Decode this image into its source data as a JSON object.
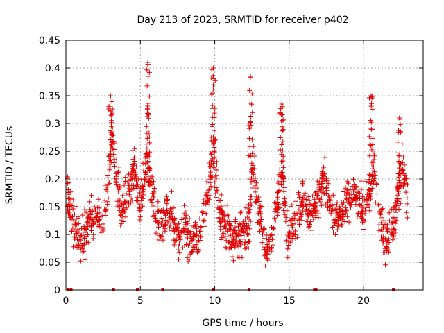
{
  "chart_data": {
    "type": "scatter",
    "title": "Day 213 of 2023, SRMTID for receiver p402",
    "xlabel": "GPS time / hours",
    "ylabel": "SRMTID / TECUs",
    "xlim": [
      0,
      24
    ],
    "ylim": [
      0,
      0.45
    ],
    "xticks": [
      0,
      5,
      10,
      15,
      20
    ],
    "yticks": [
      0,
      0.05,
      0.1,
      0.15,
      0.2,
      0.25,
      0.3,
      0.35,
      0.4,
      0.45
    ],
    "ytick_labels": [
      "0",
      "0.05",
      "0.1",
      "0.15",
      "0.2",
      "0.25",
      "0.3",
      "0.35",
      "0.4",
      "0.45"
    ],
    "grid": true,
    "color": "#e00000",
    "marker": "plus",
    "zero_markers_hours": [
      0.15,
      0.35,
      3.2,
      4.8,
      6.5,
      9.9,
      12.3,
      16.7,
      16.8,
      22.0
    ],
    "trend": [
      [
        0.0,
        0.17
      ],
      [
        0.3,
        0.15
      ],
      [
        0.6,
        0.11
      ],
      [
        1.0,
        0.09
      ],
      [
        1.3,
        0.1
      ],
      [
        1.6,
        0.13
      ],
      [
        2.0,
        0.14
      ],
      [
        2.4,
        0.12
      ],
      [
        2.8,
        0.18
      ],
      [
        3.1,
        0.27
      ],
      [
        3.4,
        0.2
      ],
      [
        3.8,
        0.14
      ],
      [
        4.2,
        0.18
      ],
      [
        4.6,
        0.22
      ],
      [
        5.0,
        0.15
      ],
      [
        5.4,
        0.24
      ],
      [
        5.7,
        0.2
      ],
      [
        6.0,
        0.13
      ],
      [
        6.5,
        0.12
      ],
      [
        7.0,
        0.14
      ],
      [
        7.5,
        0.1
      ],
      [
        8.0,
        0.11
      ],
      [
        8.5,
        0.09
      ],
      [
        9.0,
        0.1
      ],
      [
        9.5,
        0.17
      ],
      [
        9.9,
        0.25
      ],
      [
        10.3,
        0.14
      ],
      [
        10.8,
        0.11
      ],
      [
        11.3,
        0.09
      ],
      [
        11.8,
        0.1
      ],
      [
        12.3,
        0.12
      ],
      [
        12.6,
        0.22
      ],
      [
        13.0,
        0.13
      ],
      [
        13.4,
        0.07
      ],
      [
        13.8,
        0.1
      ],
      [
        14.2,
        0.15
      ],
      [
        14.5,
        0.22
      ],
      [
        14.9,
        0.1
      ],
      [
        15.4,
        0.12
      ],
      [
        15.9,
        0.17
      ],
      [
        16.4,
        0.13
      ],
      [
        16.9,
        0.16
      ],
      [
        17.4,
        0.2
      ],
      [
        17.9,
        0.14
      ],
      [
        18.4,
        0.13
      ],
      [
        18.9,
        0.16
      ],
      [
        19.4,
        0.18
      ],
      [
        19.9,
        0.14
      ],
      [
        20.3,
        0.17
      ],
      [
        20.7,
        0.21
      ],
      [
        21.1,
        0.13
      ],
      [
        21.5,
        0.08
      ],
      [
        21.9,
        0.11
      ],
      [
        22.3,
        0.16
      ],
      [
        22.6,
        0.22
      ],
      [
        22.9,
        0.17
      ]
    ],
    "bursts": [
      {
        "center": 3.0,
        "width": 0.3,
        "peak": 0.35
      },
      {
        "center": 5.5,
        "width": 0.25,
        "peak": 0.41
      },
      {
        "center": 9.9,
        "width": 0.3,
        "peak": 0.4
      },
      {
        "center": 12.4,
        "width": 0.25,
        "peak": 0.385
      },
      {
        "center": 14.5,
        "width": 0.25,
        "peak": 0.335
      },
      {
        "center": 20.5,
        "width": 0.25,
        "peak": 0.35
      },
      {
        "center": 22.4,
        "width": 0.2,
        "peak": 0.31
      }
    ]
  }
}
